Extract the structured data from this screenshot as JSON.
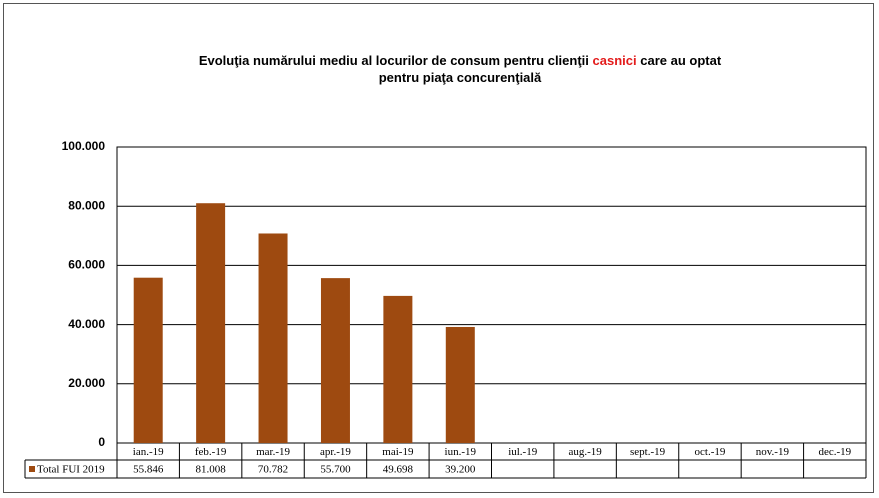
{
  "chart_data": {
    "type": "bar",
    "title_parts": [
      "Evoluţia numărului mediu al locurilor de consum pentru clienţii",
      "casnici",
      "care au optat",
      "pentru piaţa concurenţială"
    ],
    "categories": [
      "ian.-19",
      "feb.-19",
      "mar.-19",
      "apr.-19",
      "mai-19",
      "iun.-19",
      "iul.-19",
      "aug.-19",
      "sept.-19",
      "oct.-19",
      "nov.-19",
      "dec.-19"
    ],
    "series": [
      {
        "name": "Total FUI 2019",
        "color": "#9e4a10",
        "values": [
          55846,
          81008,
          70782,
          55700,
          49698,
          39200,
          null,
          null,
          null,
          null,
          null,
          null
        ],
        "value_labels": [
          "55.846",
          "81.008",
          "70.782",
          "55.700",
          "49.698",
          "39.200",
          null,
          null,
          null,
          null,
          null,
          null
        ]
      }
    ],
    "ylim": [
      0,
      100000
    ],
    "yticks": [
      0,
      {
        "value": 20000,
        "label": "20.000"
      },
      {
        "value": 40000,
        "label": "40.000"
      },
      {
        "value": 60000,
        "label": "60.000"
      },
      {
        "value": 80000,
        "label": "80.000"
      },
      {
        "value": 100000,
        "label": "100.000"
      }
    ],
    "grid": true
  }
}
